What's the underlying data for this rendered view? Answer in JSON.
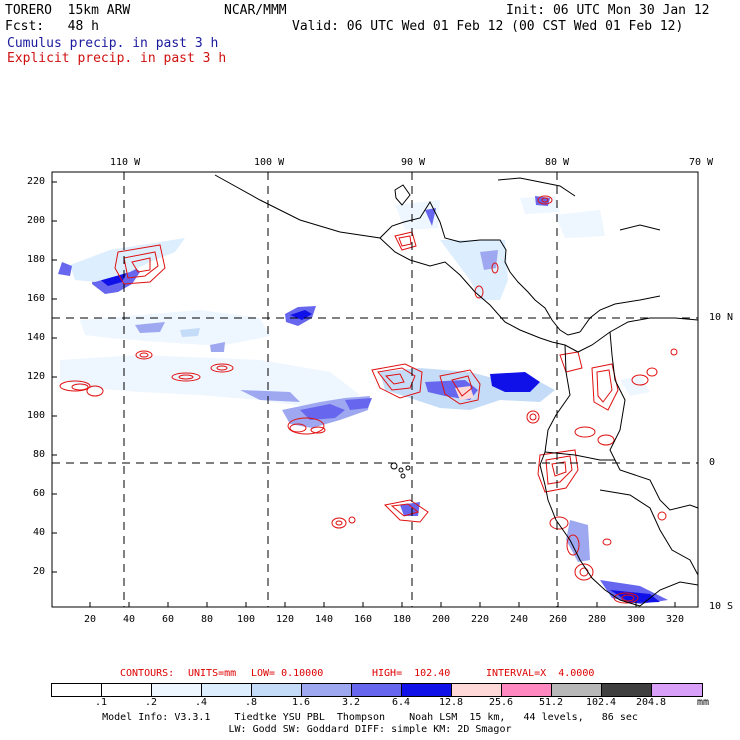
{
  "header": {
    "model": "TORERO  15km ARW",
    "org": "NCAR/MMM",
    "init": "Init: 06 UTC Mon 30 Jan 12",
    "fcst": "Fcst:   48 h",
    "valid": "Valid: 06 UTC Wed 01 Feb 12 (00 CST Wed 01 Feb 12)",
    "field1": "Cumulus precip. in past 3 h",
    "field2": "Explicit precip. in past 3 h",
    "field1_color": "#1a1a9e",
    "field2_color": "#d01010"
  },
  "map": {
    "lon_labels": [
      "110 W",
      "100 W",
      "90 W",
      "80 W",
      "70 W"
    ],
    "lat_labels": [
      "10 N",
      "0",
      "10 S"
    ],
    "y_ticks": [
      "220",
      "200",
      "180",
      "160",
      "140",
      "120",
      "100",
      "80",
      "60",
      "40",
      "20"
    ],
    "x_ticks": [
      "20",
      "40",
      "60",
      "80",
      "100",
      "120",
      "140",
      "160",
      "180",
      "200",
      "220",
      "240",
      "260",
      "280",
      "300",
      "320"
    ]
  },
  "contours": {
    "label": "CONTOURS:",
    "units": "UNITS=mm",
    "low": "LOW= 0.10000",
    "high": "HIGH=  102.40",
    "interval": "INTERVAL=X  4.0000"
  },
  "legend": {
    "labels": [
      ".1",
      ".2",
      ".4",
      ".8",
      "1.6",
      "3.2",
      "6.4",
      "12.8",
      "25.6",
      "51.2",
      "102.4",
      "204.8",
      "mm"
    ],
    "colors": [
      "#ffffff",
      "#ffffff",
      "#eef6ff",
      "#ddeeff",
      "#c4dcf8",
      "#9ea8f0",
      "#6666ee",
      "#1010e8",
      "#ffd8d8",
      "#ff88c0",
      "#b8b8b8",
      "#404040",
      "#d8a0f8"
    ]
  },
  "footer": {
    "line1": "Model Info: V3.3.1    Tiedtke YSU PBL  Thompson    Noah LSM  15 km,   44 levels,   86 sec",
    "line2": "LW: Godd SW: Goddard DIFF: simple KM: 2D Smagor"
  }
}
